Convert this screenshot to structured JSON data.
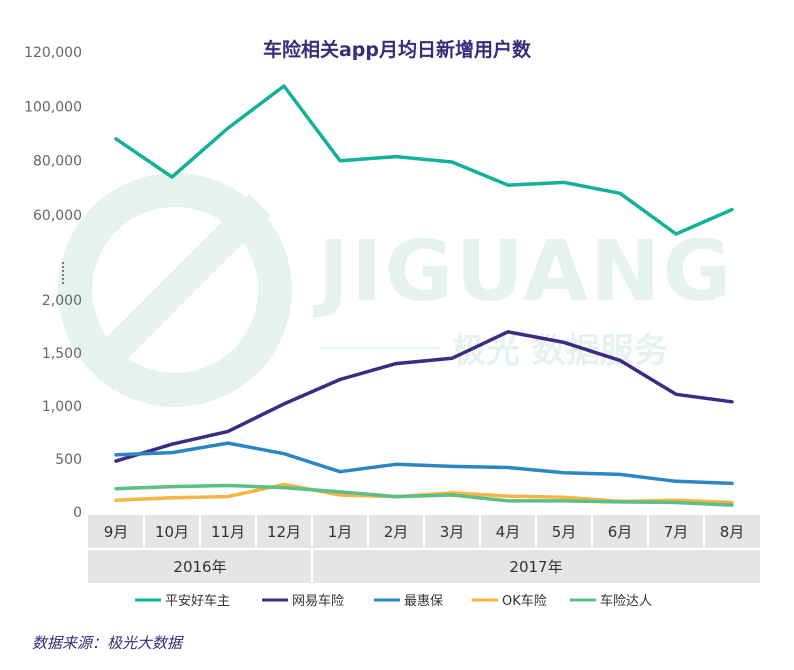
{
  "chart_data": {
    "type": "line",
    "title": "车险相关app月均日新增用户数",
    "categories": [
      "9月",
      "10月",
      "11月",
      "12月",
      "1月",
      "2月",
      "3月",
      "4月",
      "5月",
      "6月",
      "7月",
      "8月"
    ],
    "category_groups": [
      {
        "label": "2016年",
        "from": 0,
        "to": 3
      },
      {
        "label": "2017年",
        "from": 4,
        "to": 11
      }
    ],
    "y_axis_break": true,
    "upper_range": [
      60000,
      120000
    ],
    "upper_ticks": [
      "120,000",
      "100,000",
      "80,000",
      "60,000"
    ],
    "upper_tick_values": [
      120000,
      100000,
      80000,
      60000
    ],
    "lower_range": [
      0,
      2000
    ],
    "lower_ticks": [
      "2,000",
      "1,500",
      "1,000",
      "500",
      "0"
    ],
    "lower_tick_values": [
      2000,
      1500,
      1000,
      500,
      0
    ],
    "legend_position": "bottom",
    "series": [
      {
        "name": "平安好车主",
        "color": "#13b09a",
        "values": [
          88000,
          74000,
          92000,
          107500,
          80000,
          81500,
          79500,
          71000,
          72000,
          68000,
          53000,
          62000
        ]
      },
      {
        "name": "网易车险",
        "color": "#3d2a82",
        "values": [
          480,
          640,
          760,
          1020,
          1250,
          1400,
          1450,
          1700,
          1600,
          1430,
          1110,
          1040
        ]
      },
      {
        "name": "最惠保",
        "color": "#2b87c2",
        "values": [
          540,
          560,
          650,
          550,
          380,
          450,
          430,
          420,
          370,
          355,
          290,
          270
        ]
      },
      {
        "name": "OK车险",
        "color": "#f5b443",
        "values": [
          110,
          135,
          145,
          260,
          160,
          145,
          180,
          150,
          140,
          100,
          110,
          90
        ]
      },
      {
        "name": "车险达人",
        "color": "#5cbf86",
        "values": [
          220,
          240,
          250,
          230,
          190,
          145,
          160,
          105,
          105,
          95,
          90,
          65
        ]
      }
    ]
  },
  "watermark": {
    "brand": "JIGUANG",
    "tagline": "极光 数据服务"
  },
  "source_note": "数据来源：极光大数据"
}
